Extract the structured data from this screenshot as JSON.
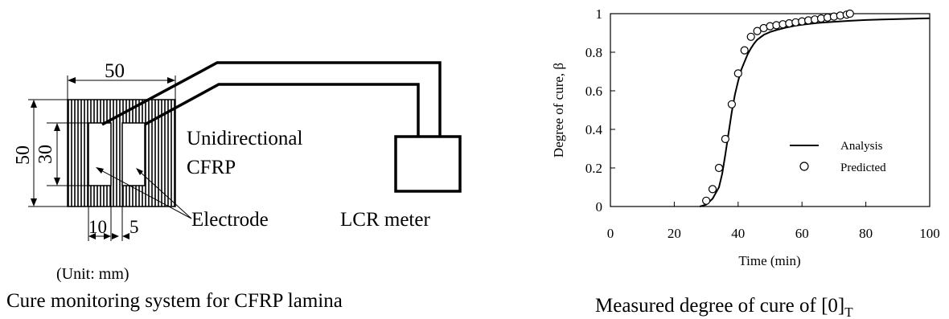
{
  "left_panel": {
    "caption": "Cure monitoring system for CFRP lamina",
    "unit_note": "(Unit: mm)",
    "dim_width": "50",
    "dim_height": "50",
    "dim_inner_height": "30",
    "dim_electrode_width": "10",
    "dim_gap": "5",
    "label_material_line1": "Unidirectional",
    "label_material_line2": "CFRP",
    "label_electrode": "Electrode",
    "label_meter": "LCR meter"
  },
  "right_panel": {
    "caption_main": "Measured degree of cure of [0]",
    "caption_subscript": "T"
  },
  "chart_data": {
    "type": "line",
    "xlabel": "Time (min)",
    "ylabel": "Degree of cure,  β",
    "xlim": [
      0,
      100
    ],
    "ylim": [
      0,
      1
    ],
    "xticks": [
      "0",
      "20",
      "40",
      "60",
      "80",
      "100"
    ],
    "yticks": [
      "0",
      "0.2",
      "0.4",
      "0.6",
      "0.8",
      "1"
    ],
    "legend_position": "lower-right",
    "grid": false,
    "series": [
      {
        "name": "Analysis",
        "style": "solid-line",
        "x": [
          28,
          30,
          32,
          34,
          35,
          36,
          37,
          38,
          39,
          40,
          41,
          42,
          43,
          44,
          45,
          46,
          48,
          50,
          52,
          55,
          58,
          60,
          65,
          70,
          75,
          80,
          85,
          90,
          95,
          100
        ],
        "y": [
          0,
          0.01,
          0.04,
          0.1,
          0.17,
          0.27,
          0.38,
          0.49,
          0.58,
          0.65,
          0.71,
          0.75,
          0.79,
          0.82,
          0.845,
          0.865,
          0.89,
          0.905,
          0.915,
          0.928,
          0.938,
          0.943,
          0.952,
          0.958,
          0.963,
          0.967,
          0.97,
          0.972,
          0.974,
          0.976
        ]
      },
      {
        "name": "Predicted",
        "style": "open-circle",
        "x": [
          30,
          32,
          34,
          36,
          38,
          40,
          42,
          44,
          46,
          48,
          50,
          52,
          54,
          56,
          58,
          60,
          62,
          64,
          66,
          68,
          70,
          72,
          74,
          75
        ],
        "y": [
          0.03,
          0.09,
          0.2,
          0.35,
          0.53,
          0.69,
          0.81,
          0.88,
          0.91,
          0.925,
          0.935,
          0.94,
          0.945,
          0.95,
          0.955,
          0.96,
          0.965,
          0.97,
          0.975,
          0.98,
          0.985,
          0.99,
          0.995,
          1.0
        ]
      }
    ]
  }
}
